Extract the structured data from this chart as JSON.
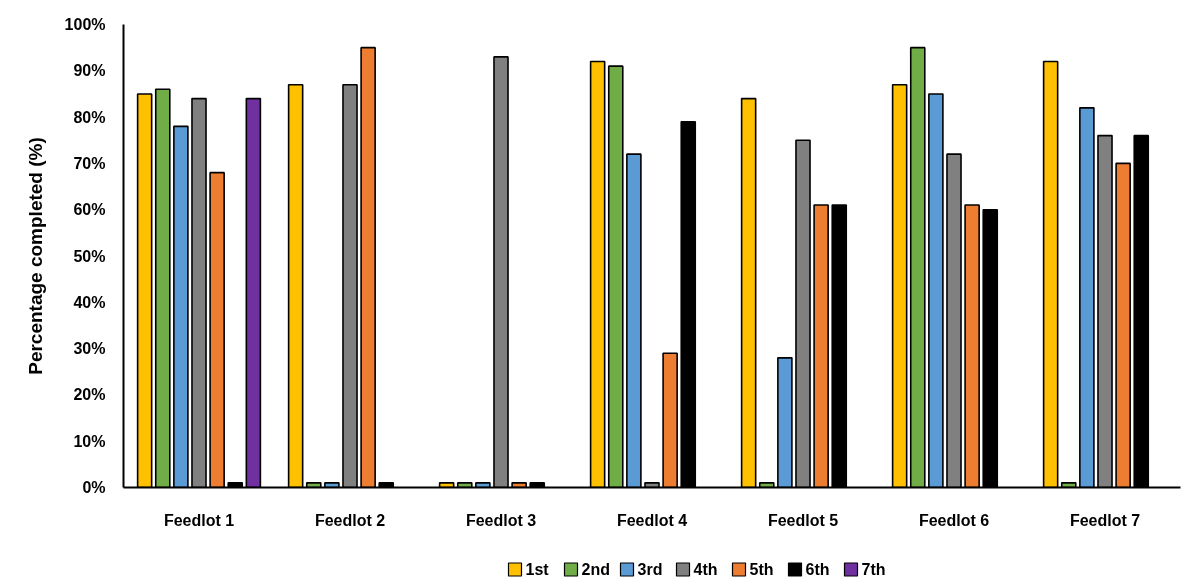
{
  "chart_data": {
    "type": "bar",
    "ylabel": "Percentage completed (%)",
    "categories": [
      "Feedlot 1",
      "Feedlot 2",
      "Feedlot 3",
      "Feedlot 4",
      "Feedlot 5",
      "Feedlot 6",
      "Feedlot 7"
    ],
    "series": [
      {
        "name": "1st",
        "color": "#ffc000",
        "values": [
          85,
          87,
          1,
          92,
          84,
          87,
          92
        ]
      },
      {
        "name": "2nd",
        "color": "#70ad47",
        "values": [
          86,
          1,
          1,
          91,
          1,
          95,
          1
        ]
      },
      {
        "name": "3rd",
        "color": "#5b9bd5",
        "values": [
          78,
          1,
          1,
          72,
          28,
          85,
          82
        ]
      },
      {
        "name": "4th",
        "color": "#808080",
        "values": [
          84,
          87,
          93,
          1,
          75,
          72,
          76
        ]
      },
      {
        "name": "5th",
        "color": "#ed7d31",
        "values": [
          68,
          95,
          1,
          29,
          61,
          61,
          70
        ]
      },
      {
        "name": "6th",
        "color": "#000000",
        "values": [
          1,
          1,
          1,
          79,
          61,
          60,
          76
        ]
      },
      {
        "name": "7th",
        "color": "#7030a0",
        "values": [
          84,
          null,
          null,
          null,
          null,
          null,
          null
        ]
      }
    ],
    "ylim": [
      0,
      100
    ],
    "yticks": [
      {
        "value": 0,
        "label": "0%"
      },
      {
        "value": 10,
        "label": "10%"
      },
      {
        "value": 20,
        "label": "20%"
      },
      {
        "value": 30,
        "label": "30%"
      },
      {
        "value": 40,
        "label": "40%"
      },
      {
        "value": 50,
        "label": "50%"
      },
      {
        "value": 60,
        "label": "60%"
      },
      {
        "value": 70,
        "label": "70%"
      },
      {
        "value": 80,
        "label": "80%"
      },
      {
        "value": 90,
        "label": "90%"
      },
      {
        "value": 100,
        "label": "100%"
      }
    ],
    "legend": "bottom"
  }
}
